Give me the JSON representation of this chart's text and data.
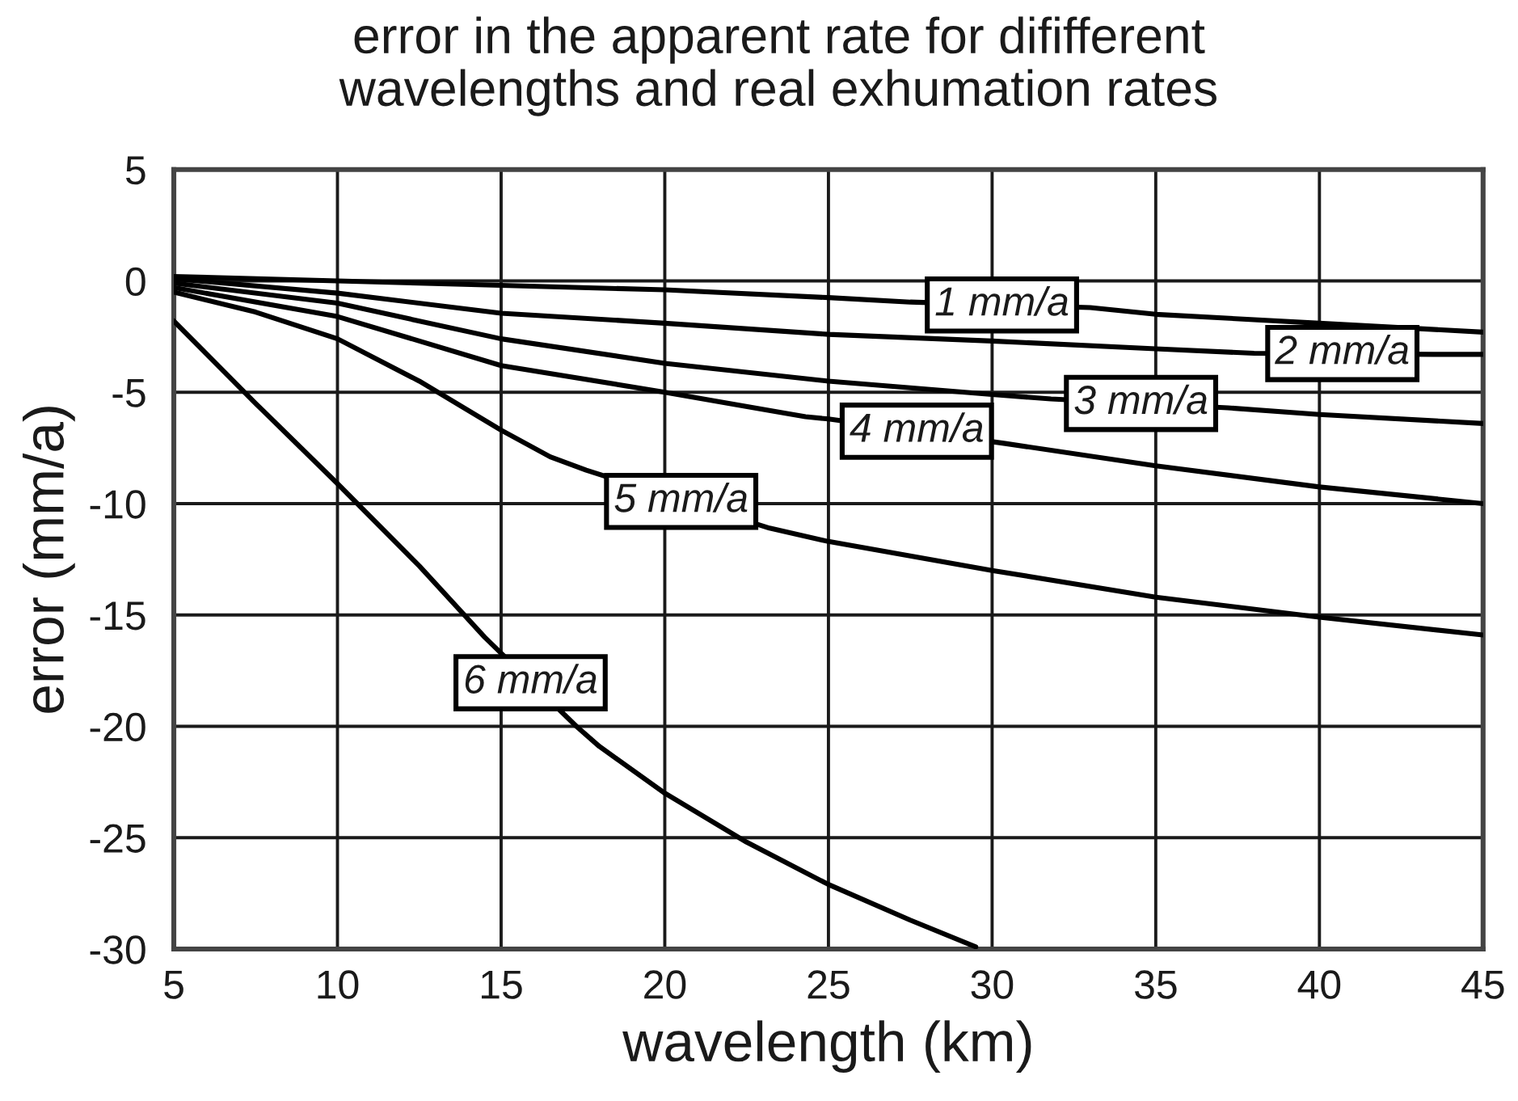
{
  "chart_data": {
    "type": "line",
    "title": "error in the apparent rate for dififferent\nwavelengths and real exhumation rates",
    "xlabel": "wavelength (km)",
    "ylabel": "error (mm/a)",
    "xlim": [
      5,
      45
    ],
    "ylim": [
      -30,
      5
    ],
    "xticks": [
      5,
      10,
      15,
      20,
      25,
      30,
      35,
      40,
      45
    ],
    "yticks": [
      5,
      0,
      -5,
      -10,
      -15,
      -20,
      -25,
      -30
    ],
    "grid": true,
    "series": [
      {
        "color": "#000000",
        "x": [
          5,
          10,
          15,
          20,
          25,
          27.5,
          33,
          35,
          40,
          45
        ],
        "values": [
          0.2,
          0.0,
          -0.2,
          -0.4,
          -0.75,
          -0.95,
          -1.2,
          -1.5,
          -1.9,
          -2.3
        ]
      },
      {
        "color": "#000000",
        "x": [
          5,
          10,
          15,
          20,
          25,
          30,
          35,
          38,
          43.5,
          45
        ],
        "values": [
          0.1,
          -0.55,
          -1.45,
          -1.9,
          -2.4,
          -2.7,
          -3.05,
          -3.25,
          -3.3,
          -3.3
        ]
      },
      {
        "color": "#000000",
        "x": [
          5,
          10,
          15,
          20,
          25,
          30,
          31.8,
          37.2,
          40,
          45
        ],
        "values": [
          -0.1,
          -1.0,
          -2.6,
          -3.7,
          -4.5,
          -5.1,
          -5.3,
          -5.7,
          -6.0,
          -6.4
        ]
      },
      {
        "color": "#000000",
        "x": [
          5,
          10,
          15,
          20,
          24.3,
          25,
          30.4,
          35,
          40,
          45
        ],
        "values": [
          -0.3,
          -1.6,
          -3.8,
          -5.0,
          -6.1,
          -6.2,
          -7.3,
          -8.3,
          -9.25,
          -10.0
        ]
      },
      {
        "color": "#000000",
        "x": [
          5,
          7.5,
          10,
          12.5,
          15,
          16.5,
          17.6,
          23.2,
          25,
          30,
          35,
          40,
          45
        ],
        "values": [
          -0.5,
          -1.4,
          -2.6,
          -4.5,
          -6.7,
          -7.9,
          -8.5,
          -11.1,
          -11.7,
          -13.0,
          -14.2,
          -15.1,
          -15.9
        ]
      },
      {
        "color": "#000000",
        "x": [
          5,
          7.5,
          10,
          12.5,
          14.5,
          17.3,
          18,
          20,
          22.5,
          25,
          27.5,
          29.5
        ],
        "values": [
          -1.8,
          -5.5,
          -9.1,
          -12.8,
          -16.0,
          -20.0,
          -20.9,
          -23.0,
          -25.2,
          -27.1,
          -28.7,
          -29.9
        ]
      }
    ],
    "annotations": [
      {
        "text": "1 mm/a",
        "x": 30.3,
        "y": -1.08
      },
      {
        "text": "2 mm/a",
        "x": 40.7,
        "y": -3.26
      },
      {
        "text": "3 mm/a",
        "x": 34.55,
        "y": -5.5
      },
      {
        "text": "4 mm/a",
        "x": 27.7,
        "y": -6.75
      },
      {
        "text": "5 mm/a",
        "x": 20.5,
        "y": -9.9
      },
      {
        "text": "6 mm/a",
        "x": 15.9,
        "y": -18.04
      }
    ]
  }
}
